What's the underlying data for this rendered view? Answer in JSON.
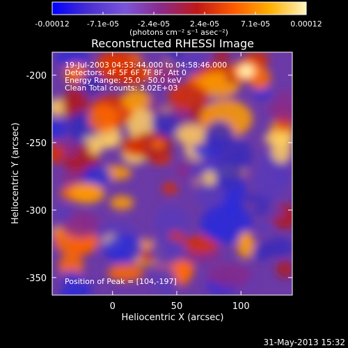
{
  "colorbar": {
    "tick_labels": [
      "-0.00012",
      "-7.1e-05",
      "-2.4e-05",
      "2.4e-05",
      "7.1e-05",
      "0.00012"
    ],
    "unit_label": "(photons cm⁻² s⁻¹ asec⁻²)",
    "range": [
      -0.00012,
      0.00012
    ],
    "colormap": [
      "#0000ff",
      "#4a2fd0",
      "#7a55d8",
      "#8a2a8a",
      "#c01818",
      "#ff5a00",
      "#ffb000",
      "#fff4c0"
    ]
  },
  "chart_data": {
    "type": "heatmap",
    "title": "Reconstructed RHESSI Image",
    "xlabel": "Heliocentric X (arcsec)",
    "ylabel": "Heliocentric Y (arcsec)",
    "xlim": [
      -47,
      140
    ],
    "ylim": [
      -363,
      -183
    ],
    "xticks": [
      0,
      50,
      100
    ],
    "yticks": [
      -200,
      -250,
      -300,
      -350
    ],
    "grid": false,
    "annotations": [
      "19-Jul-2003 04:53:44.000 to 04:58:46.000",
      "Detectors: 4F 5F 6F 7F 8F, Att 0",
      "Energy Range: 25.0 - 50.0 keV",
      "Clean    Total counts: 3.02E+03"
    ],
    "peak_label": "Position of Peak = [104,-197]",
    "peak": [
      104,
      -197
    ]
  },
  "footer": {
    "timestamp": "31-May-2013 15:32"
  }
}
